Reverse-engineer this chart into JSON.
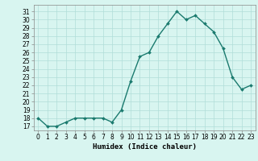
{
  "x": [
    0,
    1,
    2,
    3,
    4,
    5,
    6,
    7,
    8,
    9,
    10,
    11,
    12,
    13,
    14,
    15,
    16,
    17,
    18,
    19,
    20,
    21,
    22,
    23
  ],
  "y": [
    18,
    17,
    17,
    17.5,
    18,
    18,
    18,
    18,
    17.5,
    19,
    22.5,
    25.5,
    26,
    28,
    29.5,
    31,
    30,
    30.5,
    29.5,
    28.5,
    26.5,
    23,
    21.5,
    22
  ],
  "line_color": "#1a7a6e",
  "marker": "D",
  "marker_size": 2.0,
  "bg_color": "#d8f5f0",
  "grid_color": "#b0ddd8",
  "xlabel": "Humidex (Indice chaleur)",
  "ylim_min": 16.5,
  "ylim_max": 31.8,
  "xlim_min": -0.5,
  "xlim_max": 23.5,
  "yticks": [
    17,
    18,
    19,
    20,
    21,
    22,
    23,
    24,
    25,
    26,
    27,
    28,
    29,
    30,
    31
  ],
  "xticks": [
    0,
    1,
    2,
    3,
    4,
    5,
    6,
    7,
    8,
    9,
    10,
    11,
    12,
    13,
    14,
    15,
    16,
    17,
    18,
    19,
    20,
    21,
    22,
    23
  ],
  "tick_fontsize": 5.5,
  "xlabel_fontsize": 6.5,
  "linewidth": 1.0
}
